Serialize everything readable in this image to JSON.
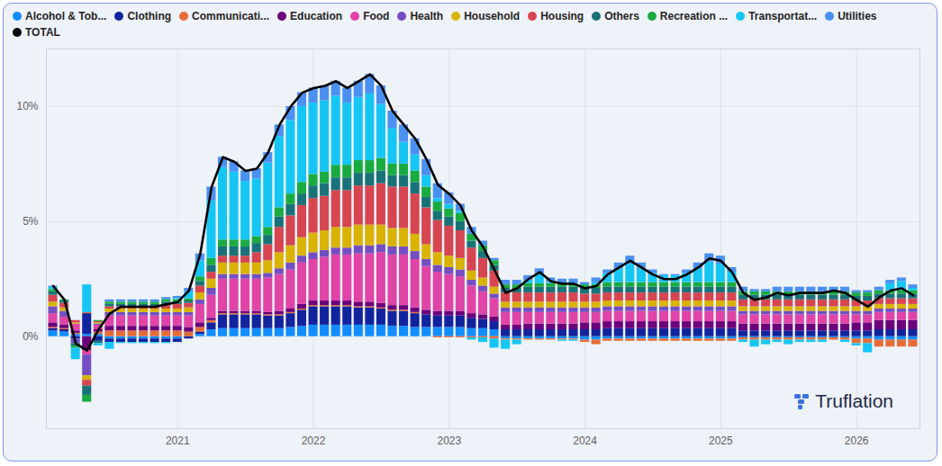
{
  "chart_data": {
    "type": "bar",
    "stacked": true,
    "grid": true,
    "legend": "top",
    "annotations": [
      "Truflation"
    ],
    "x": [
      "2020-02",
      "2020-03",
      "2020-04",
      "2020-05",
      "2020-06",
      "2020-07",
      "2020-08",
      "2020-09",
      "2020-10",
      "2020-11",
      "2020-12",
      "2021-01",
      "2021-02",
      "2021-03",
      "2021-04",
      "2021-05",
      "2021-06",
      "2021-07",
      "2021-08",
      "2021-09",
      "2021-10",
      "2021-11",
      "2021-12",
      "2022-01",
      "2022-02",
      "2022-03",
      "2022-04",
      "2022-05",
      "2022-06",
      "2022-07",
      "2022-08",
      "2022-09",
      "2022-10",
      "2022-11",
      "2022-12",
      "2023-01",
      "2023-02",
      "2023-03",
      "2023-04",
      "2023-05",
      "2023-06",
      "2023-07",
      "2023-08",
      "2023-09",
      "2023-10",
      "2023-11",
      "2023-12",
      "2024-01",
      "2024-02",
      "2024-03",
      "2024-04",
      "2024-05",
      "2024-06",
      "2024-07",
      "2024-08",
      "2024-09",
      "2024-10",
      "2024-11",
      "2024-12",
      "2025-01",
      "2025-02",
      "2025-03",
      "2025-04",
      "2025-05",
      "2025-06",
      "2025-07",
      "2025-08",
      "2025-09",
      "2025-10",
      "2025-11",
      "2025-12",
      "2026-01",
      "2026-02",
      "2026-03",
      "2026-04",
      "2026-05",
      "2026-06"
    ],
    "xticks": [
      {
        "value": "2021-01",
        "label": "2021"
      },
      {
        "value": "2022-01",
        "label": "2022"
      },
      {
        "value": "2023-01",
        "label": "2023"
      },
      {
        "value": "2024-01",
        "label": "2024"
      },
      {
        "value": "2025-01",
        "label": "2025"
      },
      {
        "value": "2026-01",
        "label": "2026"
      }
    ],
    "ylim": [
      -4,
      12.5
    ],
    "yticks": [
      {
        "value": 0,
        "label": "0%"
      },
      {
        "value": 5,
        "label": "5%"
      },
      {
        "value": 10,
        "label": "10%"
      }
    ],
    "series": [
      {
        "name": "Alcohol & Tob...",
        "color": "#118dff",
        "values": [
          0.25,
          0.2,
          0.1,
          0.1,
          0.1,
          -0.1,
          -0.1,
          -0.1,
          -0.1,
          -0.1,
          -0.1,
          -0.1,
          0,
          0.1,
          0.3,
          0.35,
          0.35,
          0.35,
          0.35,
          0.35,
          0.35,
          0.4,
          0.45,
          0.5,
          0.5,
          0.5,
          0.5,
          0.5,
          0.5,
          0.5,
          0.45,
          0.45,
          0.4,
          0.4,
          0.4,
          0.4,
          0.4,
          0.35,
          0.35,
          0.3,
          -0.1,
          -0.1,
          -0.1,
          -0.1,
          -0.1,
          -0.1,
          -0.1,
          -0.15,
          -0.15,
          -0.1,
          -0.1,
          -0.1,
          -0.1,
          -0.1,
          -0.1,
          -0.1,
          -0.1,
          -0.1,
          -0.1,
          -0.1,
          -0.1,
          -0.05,
          -0.05,
          -0.05,
          -0.05,
          -0.05,
          -0.05,
          -0.05,
          -0.05,
          -0.05,
          -0.05,
          -0.1,
          -0.1,
          -0.15,
          -0.15,
          -0.15,
          -0.15
        ]
      },
      {
        "name": "Clothing",
        "color": "#12239e",
        "values": [
          0.1,
          0.1,
          -0.1,
          0.9,
          -0.2,
          -0.15,
          -0.15,
          -0.15,
          -0.15,
          -0.15,
          -0.15,
          -0.15,
          -0.1,
          0.1,
          0.3,
          0.6,
          0.6,
          0.6,
          0.6,
          0.55,
          0.55,
          0.6,
          0.7,
          0.8,
          0.8,
          0.8,
          0.8,
          0.75,
          0.75,
          0.7,
          0.65,
          0.65,
          0.6,
          0.55,
          0.5,
          0.5,
          0.5,
          0.45,
          0.4,
          0.35,
          0.3,
          0.3,
          0.3,
          0.3,
          0.3,
          0.3,
          0.3,
          0.3,
          0.3,
          0.35,
          0.35,
          0.35,
          0.35,
          0.35,
          0.35,
          0.35,
          0.35,
          0.35,
          0.35,
          0.35,
          0.35,
          0.25,
          0.25,
          0.25,
          0.25,
          0.25,
          0.25,
          0.25,
          0.25,
          0.25,
          0.25,
          0.25,
          0.25,
          0.3,
          0.3,
          0.3,
          0.3
        ]
      },
      {
        "name": "Communicati...",
        "color": "#e66c37",
        "values": [
          0.05,
          0.05,
          0.05,
          0.05,
          0.1,
          0.25,
          0.25,
          0.25,
          0.25,
          0.25,
          0.25,
          0.25,
          0.2,
          0.2,
          0.1,
          0.05,
          0.05,
          0.05,
          0.05,
          0.05,
          0.05,
          0.05,
          0.05,
          0.05,
          0.05,
          0.05,
          0.05,
          0.05,
          0.05,
          0.05,
          0.05,
          0.05,
          0.05,
          0,
          -0.05,
          -0.05,
          -0.05,
          -0.05,
          -0.05,
          -0.1,
          -0.05,
          -0.05,
          -0.05,
          -0.05,
          -0.05,
          -0.05,
          -0.05,
          -0.1,
          -0.2,
          -0.1,
          -0.1,
          -0.1,
          -0.1,
          -0.1,
          -0.1,
          -0.1,
          -0.1,
          -0.1,
          -0.1,
          -0.1,
          -0.1,
          -0.1,
          -0.1,
          -0.1,
          -0.1,
          -0.1,
          -0.1,
          -0.1,
          -0.1,
          -0.1,
          -0.1,
          -0.2,
          -0.2,
          -0.3,
          -0.3,
          -0.3,
          -0.3
        ]
      },
      {
        "name": "Education",
        "color": "#6b007b",
        "values": [
          0.2,
          0.15,
          0.1,
          -0.6,
          0.1,
          0.2,
          0.2,
          0.2,
          0.2,
          0.2,
          0.2,
          0.2,
          0.2,
          0.2,
          0.1,
          0.1,
          0.1,
          0.1,
          0.1,
          0.1,
          0.15,
          0.15,
          0.2,
          0.2,
          0.2,
          0.2,
          0.2,
          0.2,
          0.2,
          0.2,
          0.2,
          0.2,
          0.2,
          0.2,
          0.2,
          0.2,
          0.2,
          0.2,
          0.2,
          0.2,
          0.2,
          0.2,
          0.25,
          0.25,
          0.25,
          0.25,
          0.25,
          0.3,
          0.3,
          0.3,
          0.3,
          0.3,
          0.3,
          0.3,
          0.3,
          0.3,
          0.3,
          0.3,
          0.3,
          0.3,
          0.3,
          0.3,
          0.3,
          0.3,
          0.3,
          0.3,
          0.3,
          0.3,
          0.3,
          0.3,
          0.3,
          0.35,
          0.35,
          0.4,
          0.4,
          0.4,
          0.4
        ]
      },
      {
        "name": "Food",
        "color": "#e044a7",
        "values": [
          0.4,
          0.35,
          0.3,
          -0.2,
          0.2,
          0.45,
          0.45,
          0.45,
          0.45,
          0.45,
          0.45,
          0.45,
          0.5,
          0.8,
          1.0,
          1.4,
          1.4,
          1.4,
          1.4,
          1.5,
          1.6,
          1.7,
          1.8,
          1.8,
          1.9,
          2.0,
          2.0,
          2.1,
          2.1,
          2.2,
          2.2,
          2.2,
          2.1,
          1.9,
          1.7,
          1.6,
          1.5,
          1.2,
          1.0,
          0.8,
          0.55,
          0.55,
          0.5,
          0.5,
          0.5,
          0.5,
          0.5,
          0.45,
          0.45,
          0.45,
          0.45,
          0.45,
          0.45,
          0.45,
          0.45,
          0.45,
          0.45,
          0.45,
          0.45,
          0.45,
          0.45,
          0.4,
          0.4,
          0.4,
          0.4,
          0.4,
          0.4,
          0.4,
          0.4,
          0.4,
          0.4,
          0.35,
          0.35,
          0.35,
          0.35,
          0.35,
          0.35
        ]
      },
      {
        "name": "Health",
        "color": "#744ec2",
        "values": [
          0.3,
          0.25,
          -0.2,
          -0.9,
          0.05,
          0.15,
          0.15,
          0.15,
          0.15,
          0.15,
          0.15,
          0.15,
          0.15,
          0.2,
          0.3,
          0.2,
          0.2,
          0.2,
          0.2,
          0.2,
          0.25,
          0.3,
          0.3,
          0.3,
          0.3,
          0.3,
          0.3,
          0.35,
          0.35,
          0.35,
          0.35,
          0.35,
          0.35,
          0.3,
          0.3,
          0.3,
          0.3,
          0.25,
          0.25,
          0.2,
          0.2,
          0.2,
          0.2,
          0.2,
          0.2,
          0.2,
          0.2,
          0.2,
          0.2,
          0.2,
          0.2,
          0.2,
          0.2,
          0.2,
          0.2,
          0.2,
          0.2,
          0.2,
          0.2,
          0.2,
          0.2,
          0.15,
          0.15,
          0.15,
          0.15,
          0.15,
          0.15,
          0.15,
          0.15,
          0.15,
          0.15,
          0.15,
          0.15,
          0.15,
          0.15,
          0.15,
          0.15
        ]
      },
      {
        "name": "Household",
        "color": "#d9b300",
        "values": [
          0.2,
          0.15,
          0.05,
          -0.2,
          0.05,
          0.15,
          0.15,
          0.15,
          0.15,
          0.15,
          0.15,
          0.15,
          0.2,
          0.3,
          0.4,
          0.5,
          0.5,
          0.5,
          0.5,
          0.55,
          0.7,
          0.75,
          0.8,
          0.85,
          0.85,
          0.9,
          0.9,
          0.9,
          0.9,
          0.85,
          0.8,
          0.8,
          0.75,
          0.65,
          0.55,
          0.5,
          0.5,
          0.4,
          0.35,
          0.3,
          0.25,
          0.25,
          0.25,
          0.25,
          0.25,
          0.25,
          0.25,
          0.25,
          0.25,
          0.25,
          0.25,
          0.25,
          0.25,
          0.25,
          0.25,
          0.25,
          0.25,
          0.25,
          0.25,
          0.25,
          0.25,
          0.2,
          0.2,
          0.2,
          0.2,
          0.2,
          0.2,
          0.2,
          0.2,
          0.2,
          0.2,
          0.2,
          0.2,
          0.2,
          0.2,
          0.2,
          0.2
        ]
      },
      {
        "name": "Housing",
        "color": "#d64550",
        "values": [
          0.3,
          0.2,
          0.1,
          -0.25,
          0.05,
          0.1,
          0.1,
          0.1,
          0.1,
          0.1,
          0.2,
          0.2,
          0.2,
          0.3,
          0.3,
          0.3,
          0.3,
          0.3,
          0.45,
          0.7,
          1.1,
          1.3,
          1.4,
          1.5,
          1.5,
          1.6,
          1.6,
          1.7,
          1.7,
          1.8,
          1.8,
          1.8,
          1.75,
          1.6,
          1.4,
          1.3,
          1.2,
          1.0,
          0.85,
          0.7,
          0.4,
          0.4,
          0.4,
          0.4,
          0.4,
          0.4,
          0.4,
          0.35,
          0.35,
          0.35,
          0.35,
          0.35,
          0.35,
          0.35,
          0.35,
          0.35,
          0.35,
          0.35,
          0.35,
          0.35,
          0.35,
          0.3,
          0.3,
          0.3,
          0.3,
          0.3,
          0.3,
          0.3,
          0.3,
          0.3,
          0.3,
          0.25,
          0.25,
          0.25,
          0.25,
          0.25,
          0.25
        ]
      },
      {
        "name": "Others",
        "color": "#197278",
        "values": [
          0.15,
          0.1,
          -0.1,
          -0.4,
          -0.1,
          0.1,
          0.1,
          0.1,
          0.1,
          0.1,
          0.1,
          0.1,
          0.1,
          0.2,
          0.3,
          0.4,
          0.4,
          0.4,
          0.4,
          0.4,
          0.45,
          0.5,
          0.5,
          0.55,
          0.55,
          0.55,
          0.55,
          0.55,
          0.55,
          0.55,
          0.5,
          0.5,
          0.5,
          0.45,
          0.4,
          0.4,
          0.4,
          0.3,
          0.3,
          0.25,
          0.2,
          0.2,
          0.25,
          0.25,
          0.25,
          0.25,
          0.25,
          0.25,
          0.25,
          0.25,
          0.25,
          0.25,
          0.25,
          0.25,
          0.25,
          0.25,
          0.25,
          0.25,
          0.25,
          0.25,
          0.25,
          0.2,
          0.2,
          0.2,
          0.2,
          0.2,
          0.2,
          0.2,
          0.2,
          0.2,
          0.2,
          0.2,
          0.2,
          0.2,
          0.2,
          0.2,
          0.2
        ]
      },
      {
        "name": "Recreation ...",
        "color": "#1aab40",
        "values": [
          0.1,
          0.05,
          -0.1,
          -0.3,
          0.05,
          0.1,
          0.1,
          0.1,
          0.1,
          0.1,
          0.1,
          0.1,
          0.1,
          0.2,
          0.3,
          0.3,
          0.3,
          0.3,
          0.3,
          0.35,
          0.4,
          0.45,
          0.5,
          0.5,
          0.5,
          0.55,
          0.55,
          0.55,
          0.55,
          0.55,
          0.5,
          0.5,
          0.5,
          0.45,
          0.4,
          0.35,
          0.35,
          0.3,
          0.25,
          0.2,
          0.15,
          0.15,
          0.15,
          0.15,
          0.15,
          0.15,
          0.15,
          0.15,
          0.15,
          0.2,
          0.2,
          0.2,
          0.2,
          0.2,
          0.2,
          0.2,
          0.2,
          0.2,
          0.2,
          0.2,
          0.2,
          0.15,
          0.15,
          0.15,
          0.15,
          0.15,
          0.15,
          0.15,
          0.15,
          0.15,
          0.15,
          0.15,
          0.15,
          0.15,
          0.15,
          0.15,
          0.15
        ]
      },
      {
        "name": "Transportat...",
        "color": "#15c6f4",
        "values": [
          0.1,
          0,
          -0.5,
          1.2,
          -0.1,
          -0.3,
          -0.05,
          -0.05,
          -0.05,
          -0.05,
          -0.05,
          0.05,
          0.3,
          0.7,
          2.5,
          3.15,
          2.95,
          2.55,
          2.5,
          2.8,
          3.1,
          3.2,
          3.3,
          3.1,
          3.1,
          3.0,
          2.7,
          2.75,
          2.9,
          2.35,
          1.55,
          0.95,
          0.7,
          0.5,
          0.15,
          0.2,
          0.1,
          -0.1,
          -0.2,
          -0.4,
          -0.4,
          -0.2,
          0.15,
          0.45,
          0.05,
          -0.05,
          -0.05,
          0,
          0.1,
          0.4,
          0.6,
          0.8,
          0.6,
          0.4,
          0.3,
          0.3,
          0.4,
          0.6,
          0.9,
          0.8,
          0.45,
          -0.1,
          -0.3,
          -0.2,
          -0.1,
          -0.2,
          -0.1,
          -0.1,
          -0.1,
          0,
          -0.1,
          -0.1,
          -0.4,
          0,
          0.3,
          0.4,
          0.1
        ]
      },
      {
        "name": "Utilities",
        "color": "#4a90f0",
        "values": [
          0.05,
          0,
          0,
          0,
          0,
          0.1,
          0.1,
          0.1,
          0.1,
          0.1,
          0.1,
          0.1,
          0.15,
          0.3,
          0.6,
          0.45,
          0.45,
          0.45,
          0.45,
          0.45,
          0.5,
          0.6,
          0.6,
          0.65,
          0.65,
          0.65,
          0.65,
          0.7,
          0.85,
          0.8,
          0.75,
          0.75,
          0.7,
          0.7,
          0.65,
          0.5,
          0.3,
          0.3,
          0.2,
          0.1,
          0.2,
          0.2,
          0.2,
          0.2,
          0.2,
          0.2,
          0.2,
          0.1,
          0.2,
          0.15,
          0.25,
          0.35,
          0.25,
          0.15,
          0.05,
          0.05,
          0.15,
          0.25,
          0.35,
          0.35,
          0.2,
          0.2,
          0.1,
          0.1,
          0.2,
          0.2,
          0.2,
          0.2,
          0.2,
          0.2,
          0.2,
          0.1,
          0.1,
          0.15,
          0.15,
          0.15,
          0.15
        ]
      },
      {
        "name": "TOTAL",
        "color": "#000000",
        "type": "line",
        "values": [
          2.2,
          1.6,
          -0.3,
          -0.6,
          0.3,
          1.0,
          1.3,
          1.3,
          1.3,
          1.3,
          1.4,
          1.5,
          2.0,
          3.6,
          6.5,
          7.8,
          7.6,
          7.2,
          7.3,
          8.0,
          9.2,
          10.0,
          10.6,
          10.8,
          10.9,
          11.1,
          10.8,
          11.1,
          11.4,
          10.9,
          9.8,
          9.2,
          8.6,
          7.7,
          6.6,
          6.2,
          5.7,
          4.6,
          3.9,
          2.9,
          1.9,
          2.1,
          2.5,
          2.8,
          2.4,
          2.3,
          2.3,
          2.1,
          2.2,
          2.7,
          3.0,
          3.3,
          3.0,
          2.7,
          2.5,
          2.5,
          2.7,
          3.0,
          3.4,
          3.3,
          2.8,
          1.9,
          1.6,
          1.7,
          1.9,
          1.8,
          1.9,
          1.9,
          1.9,
          2.0,
          1.9,
          1.6,
          1.3,
          1.7,
          2.0,
          2.1,
          1.8
        ]
      }
    ]
  }
}
